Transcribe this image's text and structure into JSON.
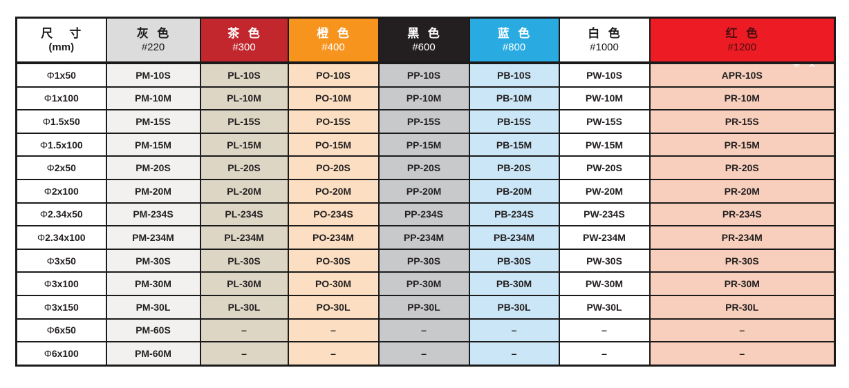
{
  "table": {
    "size_header": {
      "title": "尺    寸",
      "unit": "(mm)"
    },
    "columns": [
      {
        "key": "gray",
        "name": "灰  色",
        "grit": "#220",
        "header_bg": "#dcdcdd",
        "header_fg": "#1a1a1a",
        "cell_bg": "#f2f1f0"
      },
      {
        "key": "tea",
        "name": "茶  色",
        "grit": "#300",
        "header_bg": "#c1272d",
        "header_fg": "#ffffff",
        "cell_bg": "#ddd6c5"
      },
      {
        "key": "orange",
        "name": "橙  色",
        "grit": "#400",
        "header_bg": "#f7941e",
        "header_fg": "#ffffff",
        "cell_bg": "#fcdfc2"
      },
      {
        "key": "black",
        "name": "黑  色",
        "grit": "#600",
        "header_bg": "#231f20",
        "header_fg": "#ffffff",
        "cell_bg": "#c8c9ca"
      },
      {
        "key": "blue",
        "name": "蓝  色",
        "grit": "#800",
        "header_bg": "#29abe2",
        "header_fg": "#ffffff",
        "cell_bg": "#cbe7f7"
      },
      {
        "key": "white",
        "name": "白  色",
        "grit": "#1000",
        "header_bg": "#ffffff",
        "header_fg": "#1a1a1a",
        "cell_bg": "#ffffff"
      },
      {
        "key": "red",
        "name": "红  色",
        "grit": "#1200",
        "header_bg": "#ed1c24",
        "header_fg": "#4a0d10",
        "cell_bg": "#f8cfbc"
      }
    ],
    "rows": [
      {
        "size": "Φ1x50",
        "codes": [
          "PM-10S",
          "PL-10S",
          "PO-10S",
          "PP-10S",
          "PB-10S",
          "PW-10S",
          "APR-10S"
        ]
      },
      {
        "size": "Φ1x100",
        "codes": [
          "PM-10M",
          "PL-10M",
          "PO-10M",
          "PP-10M",
          "PB-10M",
          "PW-10M",
          "PR-10M"
        ]
      },
      {
        "size": "Φ1.5x50",
        "codes": [
          "PM-15S",
          "PL-15S",
          "PO-15S",
          "PP-15S",
          "PB-15S",
          "PW-15S",
          "PR-15S"
        ]
      },
      {
        "size": "Φ1.5x100",
        "codes": [
          "PM-15M",
          "PL-15M",
          "PO-15M",
          "PP-15M",
          "PB-15M",
          "PW-15M",
          "PR-15M"
        ]
      },
      {
        "size": "Φ2x50",
        "codes": [
          "PM-20S",
          "PL-20S",
          "PO-20S",
          "PP-20S",
          "PB-20S",
          "PW-20S",
          "PR-20S"
        ]
      },
      {
        "size": "Φ2x100",
        "codes": [
          "PM-20M",
          "PL-20M",
          "PO-20M",
          "PP-20M",
          "PB-20M",
          "PW-20M",
          "PR-20M"
        ]
      },
      {
        "size": "Φ2.34x50",
        "codes": [
          "PM-234S",
          "PL-234S",
          "PO-234S",
          "PP-234S",
          "PB-234S",
          "PW-234S",
          "PR-234S"
        ]
      },
      {
        "size": "Φ2.34x100",
        "codes": [
          "PM-234M",
          "PL-234M",
          "PO-234M",
          "PP-234M",
          "PB-234M",
          "PW-234M",
          "PR-234M"
        ]
      },
      {
        "size": "Φ3x50",
        "codes": [
          "PM-30S",
          "PL-30S",
          "PO-30S",
          "PP-30S",
          "PB-30S",
          "PW-30S",
          "PR-30S"
        ]
      },
      {
        "size": "Φ3x100",
        "codes": [
          "PM-30M",
          "PL-30M",
          "PO-30M",
          "PP-30M",
          "PB-30M",
          "PW-30M",
          "PR-30M"
        ]
      },
      {
        "size": "Φ3x150",
        "codes": [
          "PM-30L",
          "PL-30L",
          "PO-30L",
          "PP-30L",
          "PB-30L",
          "PW-30L",
          "PR-30L"
        ]
      },
      {
        "size": "Φ6x50",
        "codes": [
          "PM-60S",
          "–",
          "–",
          "–",
          "–",
          "–",
          "–"
        ]
      },
      {
        "size": "Φ6x100",
        "codes": [
          "PM-60M",
          "–",
          "–",
          "–",
          "–",
          "–",
          "–"
        ]
      }
    ],
    "watermark_marks": "✳ ✕",
    "border_color": "#1a1a1a",
    "text_color": "#231f20"
  }
}
